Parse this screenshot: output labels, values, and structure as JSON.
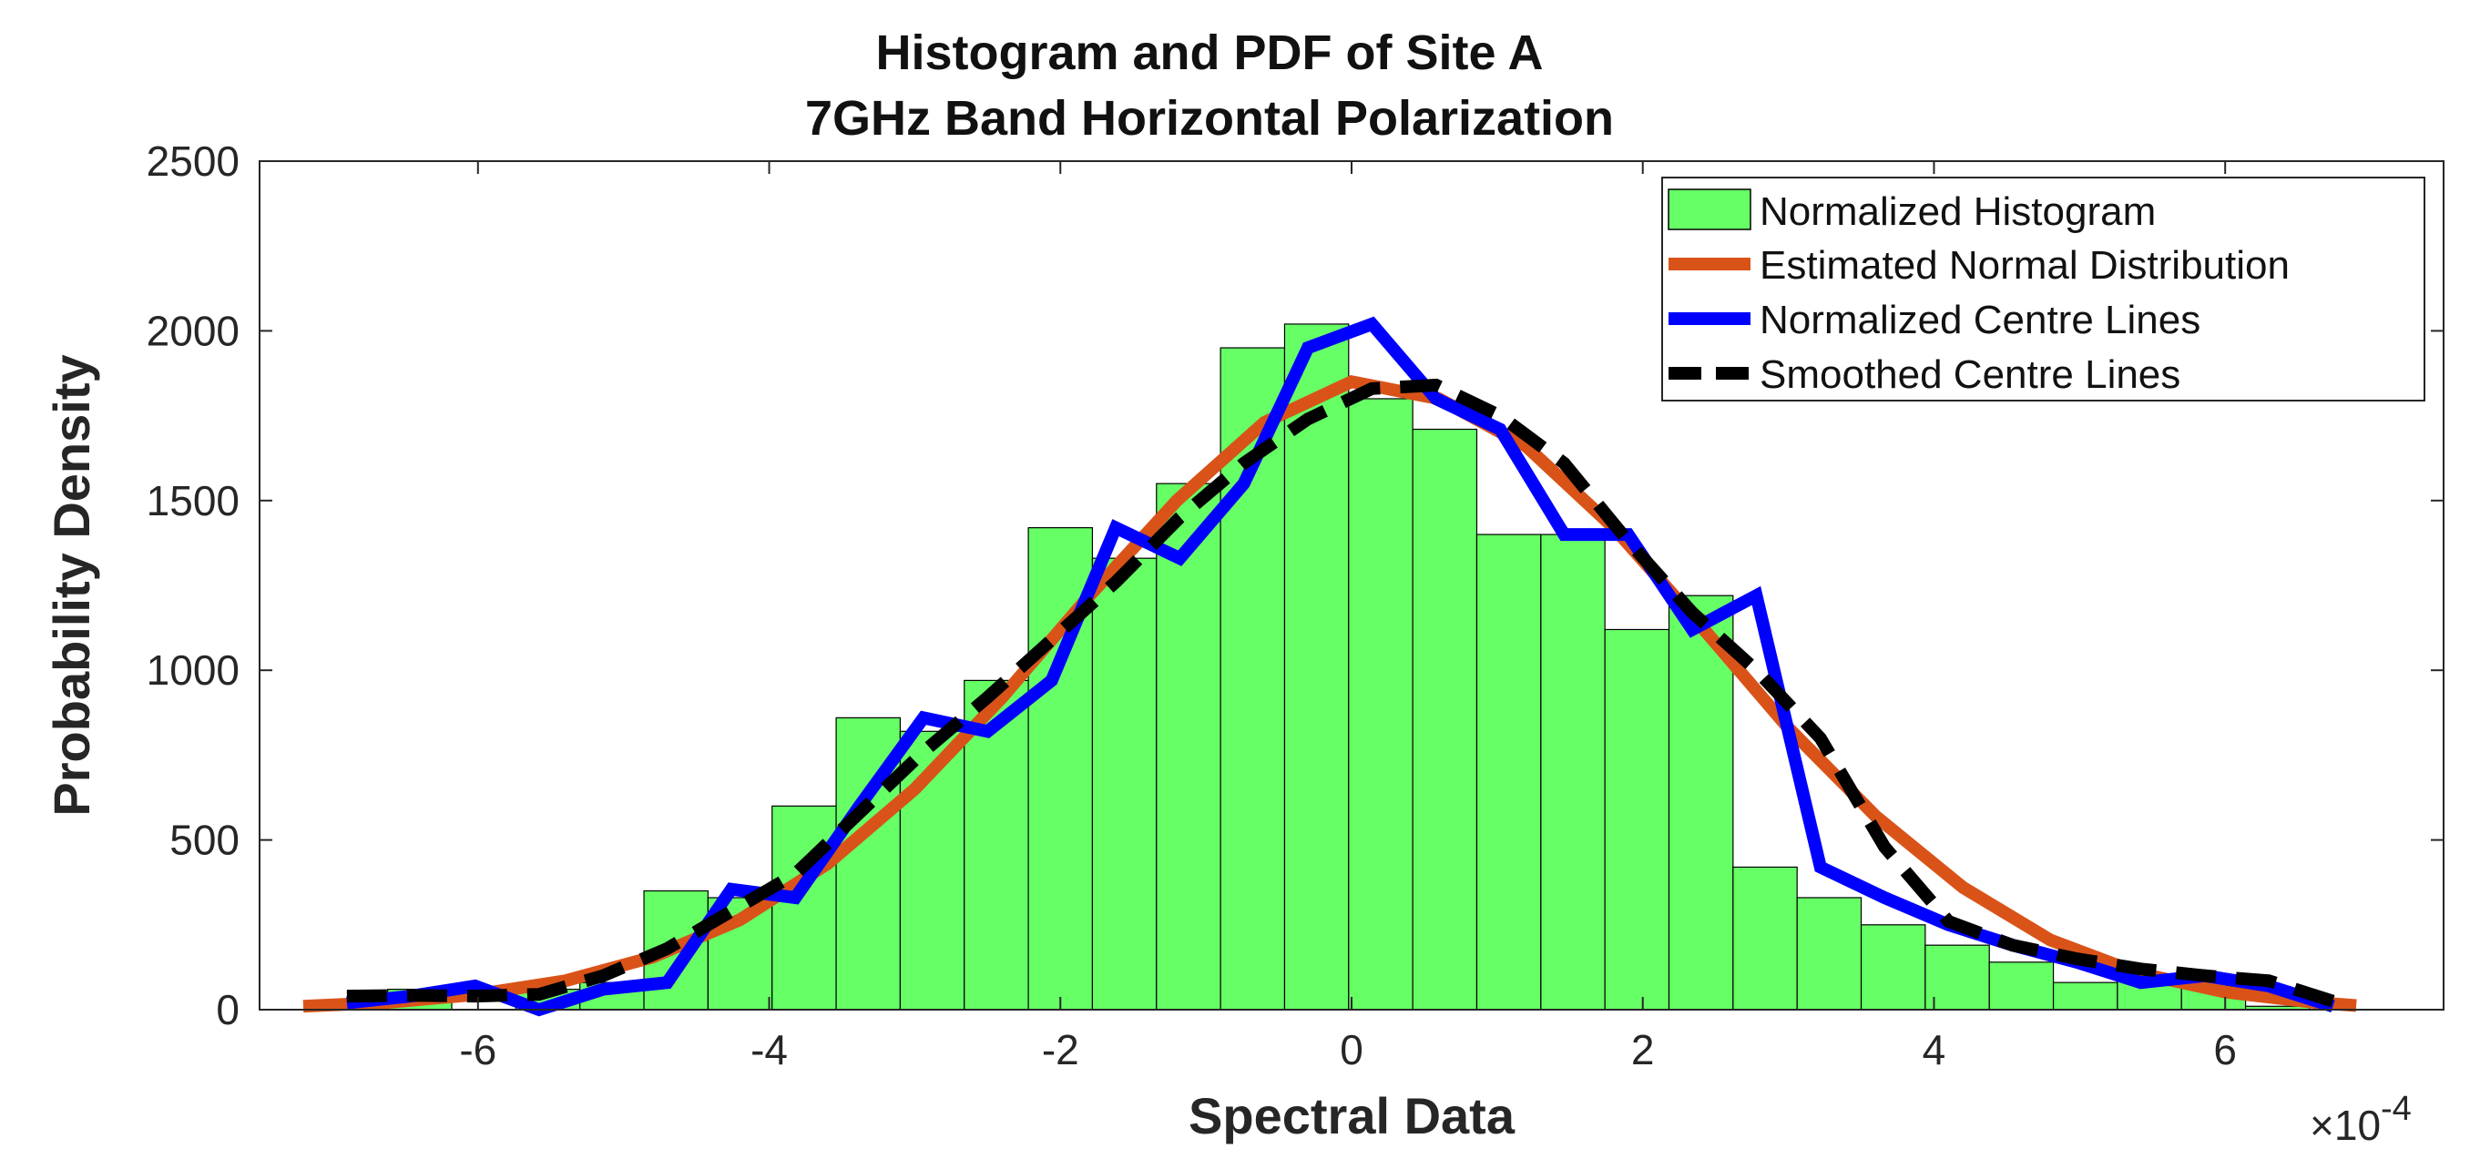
{
  "chart_data": {
    "type": "bar",
    "title": [
      "Histogram and PDF of Site A",
      "7GHz Band Horizontal Polarization"
    ],
    "xlabel": "Spectral Data",
    "ylabel": "Probability Density",
    "x_multiplier": "×10",
    "x_multiplier_exponent": "-4",
    "xlim": [
      -7.5,
      7.5
    ],
    "ylim": [
      0,
      2500
    ],
    "xticks": [
      -6,
      -4,
      -2,
      0,
      2,
      4,
      6
    ],
    "xtick_labels": [
      "-6",
      "-4",
      "-2",
      "0",
      "2",
      "4",
      "6"
    ],
    "yticks": [
      0,
      500,
      1000,
      1500,
      2000,
      2500
    ],
    "ytick_labels": [
      "0",
      "500",
      "1000",
      "1500",
      "2000",
      "2500"
    ],
    "grid": false,
    "legend_position": "top-right",
    "histogram": {
      "name": "Normalized Histogram",
      "color": "#66ff66",
      "edge_color": "#000000",
      "bin_edges": [
        -7.06,
        -6.62,
        -6.18,
        -5.74,
        -5.3,
        -4.86,
        -4.42,
        -3.98,
        -3.54,
        -3.1,
        -2.66,
        -2.22,
        -1.78,
        -1.34,
        -0.9,
        -0.46,
        -0.02,
        0.42,
        0.86,
        1.3,
        1.74,
        2.18,
        2.62,
        3.06,
        3.5,
        3.94,
        4.38,
        4.82,
        5.26,
        5.7,
        6.14,
        6.58
      ],
      "values": [
        20,
        60,
        0,
        60,
        80,
        350,
        330,
        600,
        860,
        820,
        970,
        1420,
        1330,
        1550,
        1950,
        2020,
        1800,
        1710,
        1400,
        1400,
        1120,
        1220,
        420,
        330,
        250,
        190,
        140,
        80,
        100,
        70,
        10
      ]
    },
    "series": [
      {
        "name": "Estimated Normal Distribution",
        "color": "#d95319",
        "style": "solid",
        "x": [
          -7.2,
          -6.6,
          -6.0,
          -5.4,
          -4.8,
          -4.2,
          -3.6,
          -3.0,
          -2.4,
          -1.8,
          -1.2,
          -0.6,
          0.0,
          0.6,
          1.2,
          1.8,
          2.4,
          3.0,
          3.6,
          4.2,
          4.8,
          5.4,
          6.0,
          6.6,
          6.9
        ],
        "y": [
          10,
          22,
          45,
          85,
          155,
          265,
          430,
          650,
          920,
          1220,
          1500,
          1730,
          1850,
          1800,
          1660,
          1420,
          1130,
          830,
          570,
          360,
          205,
          108,
          52,
          22,
          12
        ]
      },
      {
        "name": "Normalized Centre Lines",
        "color": "#0000ff",
        "style": "solid",
        "x": [
          -6.9,
          -6.46,
          -6.02,
          -5.58,
          -5.14,
          -4.7,
          -4.26,
          -3.82,
          -3.38,
          -2.94,
          -2.5,
          -2.06,
          -1.62,
          -1.18,
          -0.74,
          -0.3,
          0.14,
          0.58,
          1.02,
          1.46,
          1.9,
          2.34,
          2.78,
          3.22,
          3.66,
          4.1,
          4.54,
          4.98,
          5.42,
          5.86,
          6.3,
          6.74
        ],
        "y": [
          20,
          40,
          70,
          0,
          60,
          80,
          355,
          330,
          600,
          860,
          820,
          970,
          1420,
          1330,
          1550,
          1950,
          2020,
          1800,
          1710,
          1400,
          1400,
          1120,
          1220,
          420,
          330,
          250,
          190,
          140,
          80,
          100,
          70,
          10
        ]
      },
      {
        "name": "Smoothed Centre Lines",
        "color": "#000000",
        "style": "dashed",
        "x": [
          -6.9,
          -6.46,
          -6.02,
          -5.58,
          -5.14,
          -4.7,
          -4.26,
          -3.82,
          -3.38,
          -2.94,
          -2.5,
          -2.06,
          -1.62,
          -1.18,
          -0.74,
          -0.3,
          0.14,
          0.58,
          1.02,
          1.46,
          1.9,
          2.34,
          2.78,
          3.22,
          3.66,
          4.1,
          4.54,
          4.98,
          5.42,
          5.86,
          6.3,
          6.74
        ],
        "y": [
          40,
          42,
          40,
          45,
          100,
          180,
          290,
          400,
          580,
          760,
          920,
          1090,
          1260,
          1450,
          1610,
          1740,
          1830,
          1840,
          1750,
          1610,
          1380,
          1170,
          1000,
          800,
          480,
          260,
          190,
          150,
          120,
          100,
          85,
          25
        ]
      }
    ]
  }
}
